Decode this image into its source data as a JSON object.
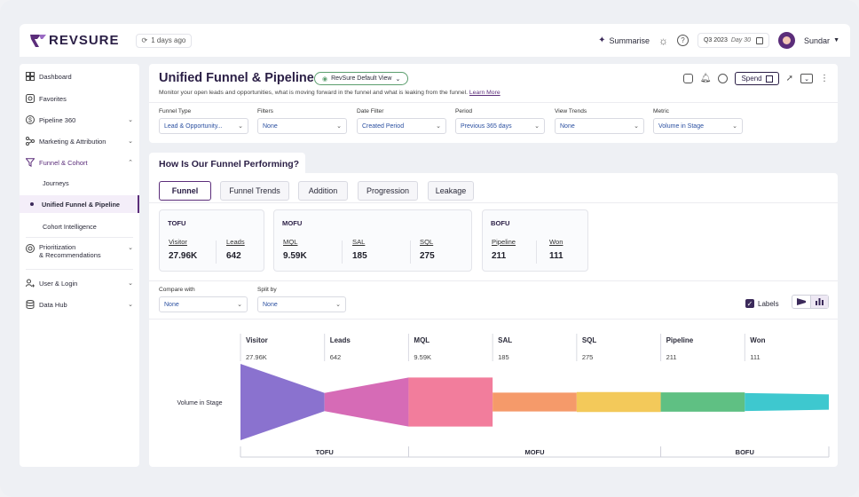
{
  "header": {
    "brand": "REVSURE",
    "sync_text": "1 days ago",
    "summarise_label": "Summarise",
    "quarter": "Q3 2023",
    "quarter_day": "Day 30",
    "user_name": "Sundar"
  },
  "sidebar": {
    "items": [
      {
        "label": "Dashboard"
      },
      {
        "label": "Favorites"
      },
      {
        "label": "Pipeline 360"
      },
      {
        "label": "Marketing & Attribution"
      },
      {
        "label": "Funnel & Cohort"
      },
      {
        "label": "Prioritization"
      },
      {
        "label": "& Recommendations"
      },
      {
        "label": "User & Login"
      },
      {
        "label": "Data Hub"
      }
    ],
    "sub_items": [
      {
        "label": "Journeys"
      },
      {
        "label": "Unified Funnel & Pipeline"
      },
      {
        "label": "Cohort Intelligence"
      }
    ]
  },
  "page": {
    "title": "Unified Funnel & Pipeline",
    "view_name": "RevSure Default View",
    "subtitle": "Monitor your open leads and opportunities, what is moving forward in the funnel and what is leaking from the funnel.",
    "learn_more": "Learn More",
    "spend_label": "Spend"
  },
  "filters": [
    {
      "label": "Funnel Type",
      "value": "Lead & Opportunity..."
    },
    {
      "label": "Filters",
      "value": "None"
    },
    {
      "label": "Date Filter",
      "value": "Created Period"
    },
    {
      "label": "Period",
      "value": "Previous 365 days"
    },
    {
      "label": "View Trends",
      "value": "None"
    },
    {
      "label": "Metric",
      "value": "Volume in Stage"
    }
  ],
  "section_title": "How Is Our Funnel Performing?",
  "tabs": [
    {
      "label": "Funnel"
    },
    {
      "label": "Funnel Trends"
    },
    {
      "label": "Addition"
    },
    {
      "label": "Progression"
    },
    {
      "label": "Leakage"
    }
  ],
  "stages": [
    {
      "name": "TOFU",
      "metrics": [
        {
          "label": "Visitor",
          "value": "27.96K"
        },
        {
          "label": "Leads",
          "value": "642"
        }
      ]
    },
    {
      "name": "MOFU",
      "metrics": [
        {
          "label": "MQL",
          "value": "9.59K"
        },
        {
          "label": "SAL",
          "value": "185"
        },
        {
          "label": "SQL",
          "value": "275"
        }
      ]
    },
    {
      "name": "BOFU",
      "metrics": [
        {
          "label": "Pipeline",
          "value": "211"
        },
        {
          "label": "Won",
          "value": "111"
        }
      ]
    }
  ],
  "options": {
    "compare_label": "Compare with",
    "compare_value": "None",
    "split_label": "Split by",
    "split_value": "None",
    "labels_toggle": "Labels"
  },
  "chart_data": {
    "type": "funnel",
    "row_label": "Volume in Stage",
    "categories": [
      "Visitor",
      "Leads",
      "MQL",
      "SAL",
      "SQL",
      "Pipeline",
      "Won"
    ],
    "value_labels": [
      "27.96K",
      "642",
      "9.59K",
      "185",
      "275",
      "211",
      "111"
    ],
    "values": [
      27960,
      642,
      9590,
      185,
      275,
      211,
      111
    ],
    "colors": [
      "#8a72cf",
      "#d66bb6",
      "#f27d9c",
      "#f59a6a",
      "#f3c95a",
      "#5fc083",
      "#3ec8cf"
    ],
    "groups": [
      {
        "name": "TOFU",
        "span": [
          0,
          1
        ]
      },
      {
        "name": "MOFU",
        "span": [
          2,
          4
        ]
      },
      {
        "name": "BOFU",
        "span": [
          5,
          6
        ]
      }
    ]
  }
}
